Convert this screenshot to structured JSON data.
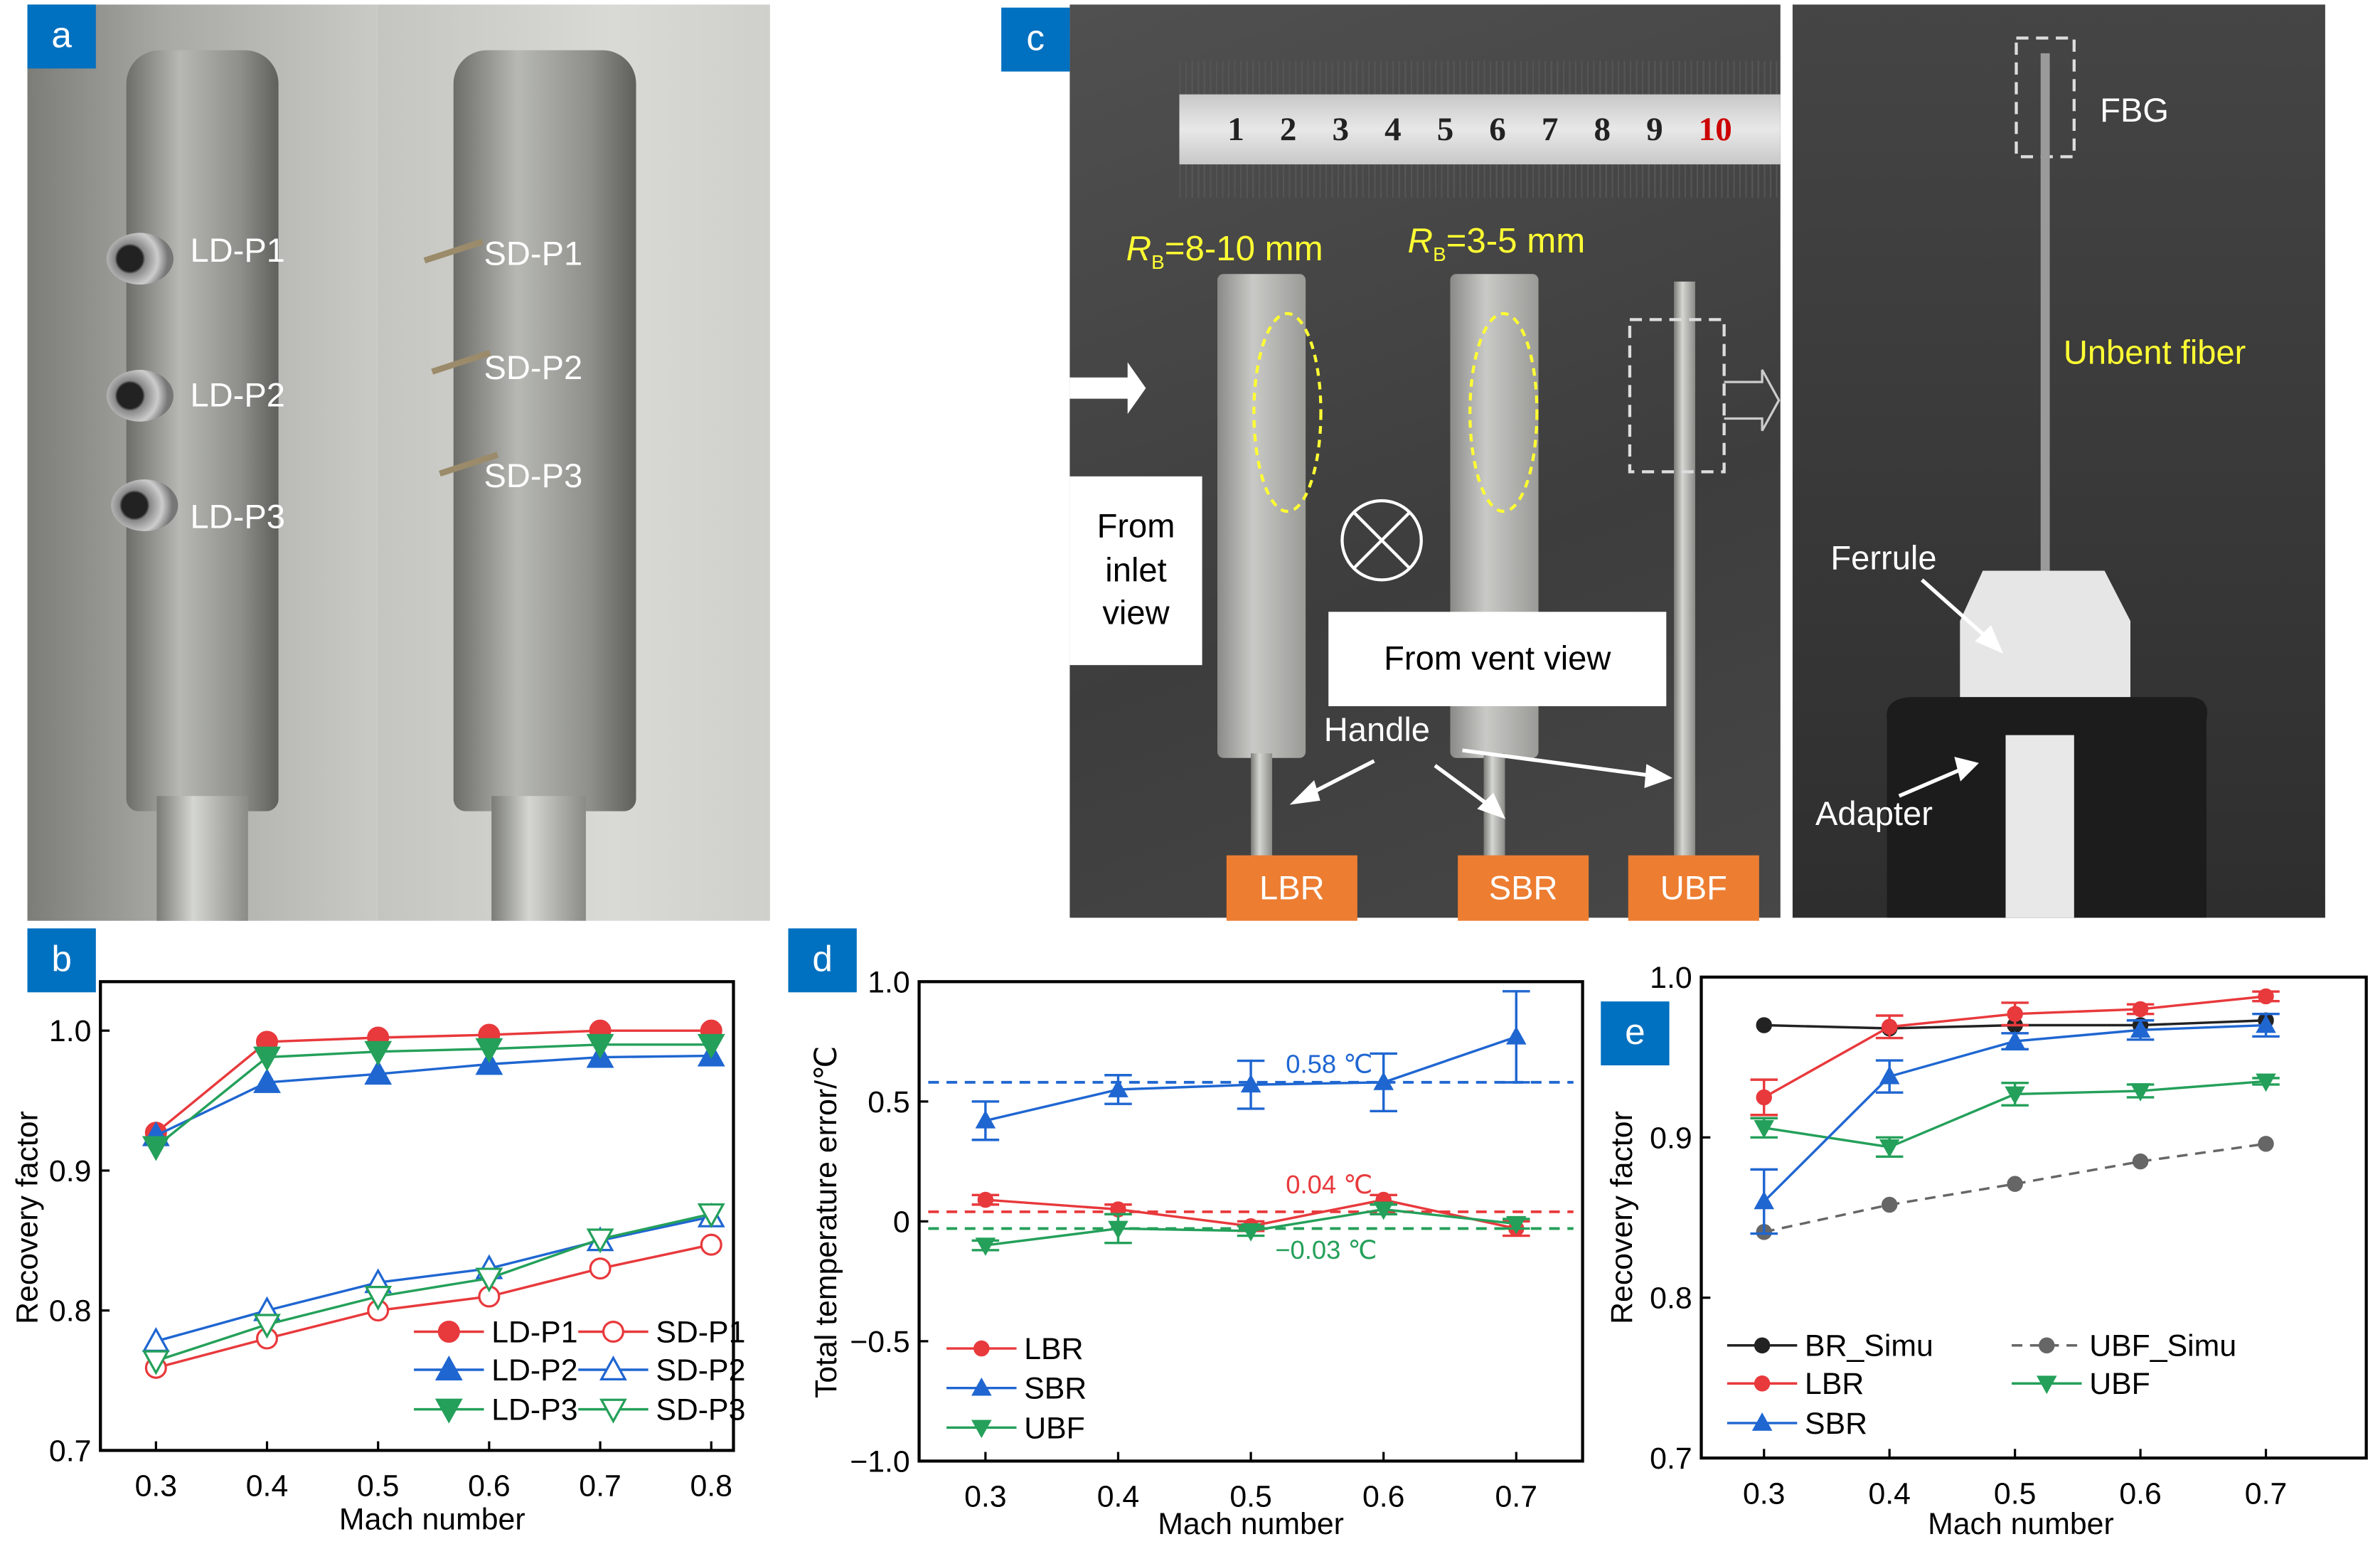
{
  "panels": {
    "a": {
      "label": "a",
      "ports_ld": [
        "LD-P1",
        "LD-P2",
        "LD-P3"
      ],
      "ports_sd": [
        "SD-P1",
        "SD-P2",
        "SD-P3"
      ]
    },
    "b": {
      "label": "b"
    },
    "c": {
      "label": "c",
      "ruler_numbers": [
        "1",
        "2",
        "3",
        "4",
        "5",
        "6",
        "7",
        "8",
        "9",
        "10"
      ],
      "rb_large": {
        "symbol": "R",
        "sub": "B",
        "text": "=8-10 mm"
      },
      "rb_small": {
        "symbol": "R",
        "sub": "B",
        "text": "=3-5 mm"
      },
      "from_inlet": "From inlet view",
      "from_vent": "From vent view",
      "handle": "Handle",
      "probes": [
        "LBR",
        "SBR",
        "UBF"
      ],
      "fbg": "FBG",
      "unbent_fiber": "Unbent fiber",
      "ferrule": "Ferrule",
      "adapter": "Adapter",
      "colors": {
        "highlight": "#ffff33",
        "probe_tag": "#ed7d31",
        "panel_tag": "#0070c0"
      }
    },
    "d": {
      "label": "d"
    },
    "e": {
      "label": "e"
    }
  },
  "chart_data": [
    {
      "id": "b",
      "type": "line",
      "xlabel": "Mach number",
      "ylabel": "Recovery factor",
      "xlim": [
        0.25,
        0.82
      ],
      "ylim": [
        0.7,
        1.035
      ],
      "xticks": [
        "0.3",
        "0.4",
        "0.5",
        "0.6",
        "0.7",
        "0.8"
      ],
      "yticks": [
        "0.7",
        "0.8",
        "0.9",
        "1.0"
      ],
      "x": [
        0.3,
        0.4,
        0.5,
        0.6,
        0.7,
        0.8
      ],
      "legend": "bottom-right",
      "series": [
        {
          "name": "LD-P1",
          "color": "#e8393c",
          "marker": "circle",
          "filled": true,
          "values": [
            0.927,
            0.992,
            0.995,
            0.997,
            1.0,
            1.0
          ]
        },
        {
          "name": "SD-P1",
          "color": "#e8393c",
          "marker": "circle",
          "filled": false,
          "values": [
            0.759,
            0.78,
            0.8,
            0.81,
            0.83,
            0.847
          ]
        },
        {
          "name": "LD-P2",
          "color": "#1f66d1",
          "marker": "triangle-up",
          "filled": true,
          "values": [
            0.925,
            0.963,
            0.969,
            0.976,
            0.981,
            0.982
          ]
        },
        {
          "name": "SD-P2",
          "color": "#1f66d1",
          "marker": "triangle-up",
          "filled": false,
          "values": [
            0.778,
            0.8,
            0.82,
            0.83,
            0.85,
            0.867
          ]
        },
        {
          "name": "LD-P3",
          "color": "#24a05a",
          "marker": "triangle-down",
          "filled": true,
          "values": [
            0.917,
            0.981,
            0.985,
            0.987,
            0.99,
            0.99
          ]
        },
        {
          "name": "SD-P3",
          "color": "#24a05a",
          "marker": "triangle-down",
          "filled": false,
          "values": [
            0.764,
            0.79,
            0.81,
            0.823,
            0.851,
            0.869
          ]
        }
      ]
    },
    {
      "id": "d",
      "type": "line",
      "xlabel": "Mach number",
      "ylabel": "Total temperature error/℃",
      "xlim": [
        0.25,
        0.75
      ],
      "ylim": [
        -1.0,
        1.0
      ],
      "xticks": [
        "0.3",
        "0.4",
        "0.5",
        "0.6",
        "0.7"
      ],
      "yticks": [
        "−1.0",
        "−0.5",
        "0",
        "0.5",
        "1.0"
      ],
      "ytick_values": [
        -1.0,
        -0.5,
        0,
        0.5,
        1.0
      ],
      "x": [
        0.3,
        0.4,
        0.5,
        0.6,
        0.7
      ],
      "legend": "bottom-left",
      "series": [
        {
          "name": "LBR",
          "color": "#e8393c",
          "marker": "circle",
          "filled": true,
          "values": [
            0.09,
            0.05,
            -0.02,
            0.09,
            -0.03
          ],
          "errors": [
            0.02,
            0.02,
            0.02,
            0.02,
            0.03
          ]
        },
        {
          "name": "SBR",
          "color": "#1f66d1",
          "marker": "triangle-up",
          "filled": true,
          "values": [
            0.42,
            0.55,
            0.57,
            0.58,
            0.77
          ],
          "errors": [
            0.08,
            0.06,
            0.1,
            0.12,
            0.19
          ]
        },
        {
          "name": "UBF",
          "color": "#24a05a",
          "marker": "triangle-down",
          "filled": true,
          "values": [
            -0.1,
            -0.03,
            -0.04,
            0.05,
            -0.01
          ],
          "errors": [
            0.02,
            0.06,
            0.02,
            0.02,
            0.02
          ]
        }
      ],
      "mean_lines": [
        {
          "value": 0.58,
          "label": "0.58 ℃",
          "color": "#1f66d1"
        },
        {
          "value": 0.04,
          "label": "0.04 ℃",
          "color": "#e8393c"
        },
        {
          "value": -0.03,
          "label": "−0.03 ℃",
          "color": "#24a05a"
        }
      ]
    },
    {
      "id": "e",
      "type": "line",
      "xlabel": "Mach number",
      "ylabel": "Recovery factor",
      "xlim": [
        0.25,
        0.78
      ],
      "ylim": [
        0.7,
        1.0
      ],
      "xticks": [
        "0.3",
        "0.4",
        "0.5",
        "0.6",
        "0.7"
      ],
      "yticks": [
        "0.7",
        "0.8",
        "0.9",
        "1.0"
      ],
      "x": [
        0.3,
        0.4,
        0.5,
        0.6,
        0.7
      ],
      "legend": "bottom-left",
      "series": [
        {
          "name": "BR_Simu",
          "color": "#222222",
          "marker": "circle",
          "filled": true,
          "dashed": false,
          "values": [
            0.97,
            0.968,
            0.97,
            0.97,
            0.973
          ]
        },
        {
          "name": "UBF_Simu",
          "color": "#666666",
          "marker": "circle",
          "filled": true,
          "dashed": true,
          "values": [
            0.841,
            0.858,
            0.871,
            0.885,
            0.896
          ]
        },
        {
          "name": "LBR",
          "color": "#e8393c",
          "marker": "circle",
          "filled": true,
          "values": [
            0.925,
            0.969,
            0.977,
            0.98,
            0.988
          ],
          "errors": [
            0.011,
            0.007,
            0.007,
            0.003,
            0.003
          ]
        },
        {
          "name": "UBF",
          "color": "#24a05a",
          "marker": "triangle-down",
          "filled": true,
          "values": [
            0.906,
            0.894,
            0.927,
            0.929,
            0.935
          ],
          "errors": [
            0.006,
            0.006,
            0.007,
            0.004,
            0.002
          ]
        },
        {
          "name": "SBR",
          "color": "#1f66d1",
          "marker": "triangle-up",
          "filled": true,
          "values": [
            0.86,
            0.938,
            0.96,
            0.967,
            0.97
          ],
          "errors": [
            0.02,
            0.01,
            0.005,
            0.006,
            0.007
          ]
        }
      ]
    }
  ]
}
